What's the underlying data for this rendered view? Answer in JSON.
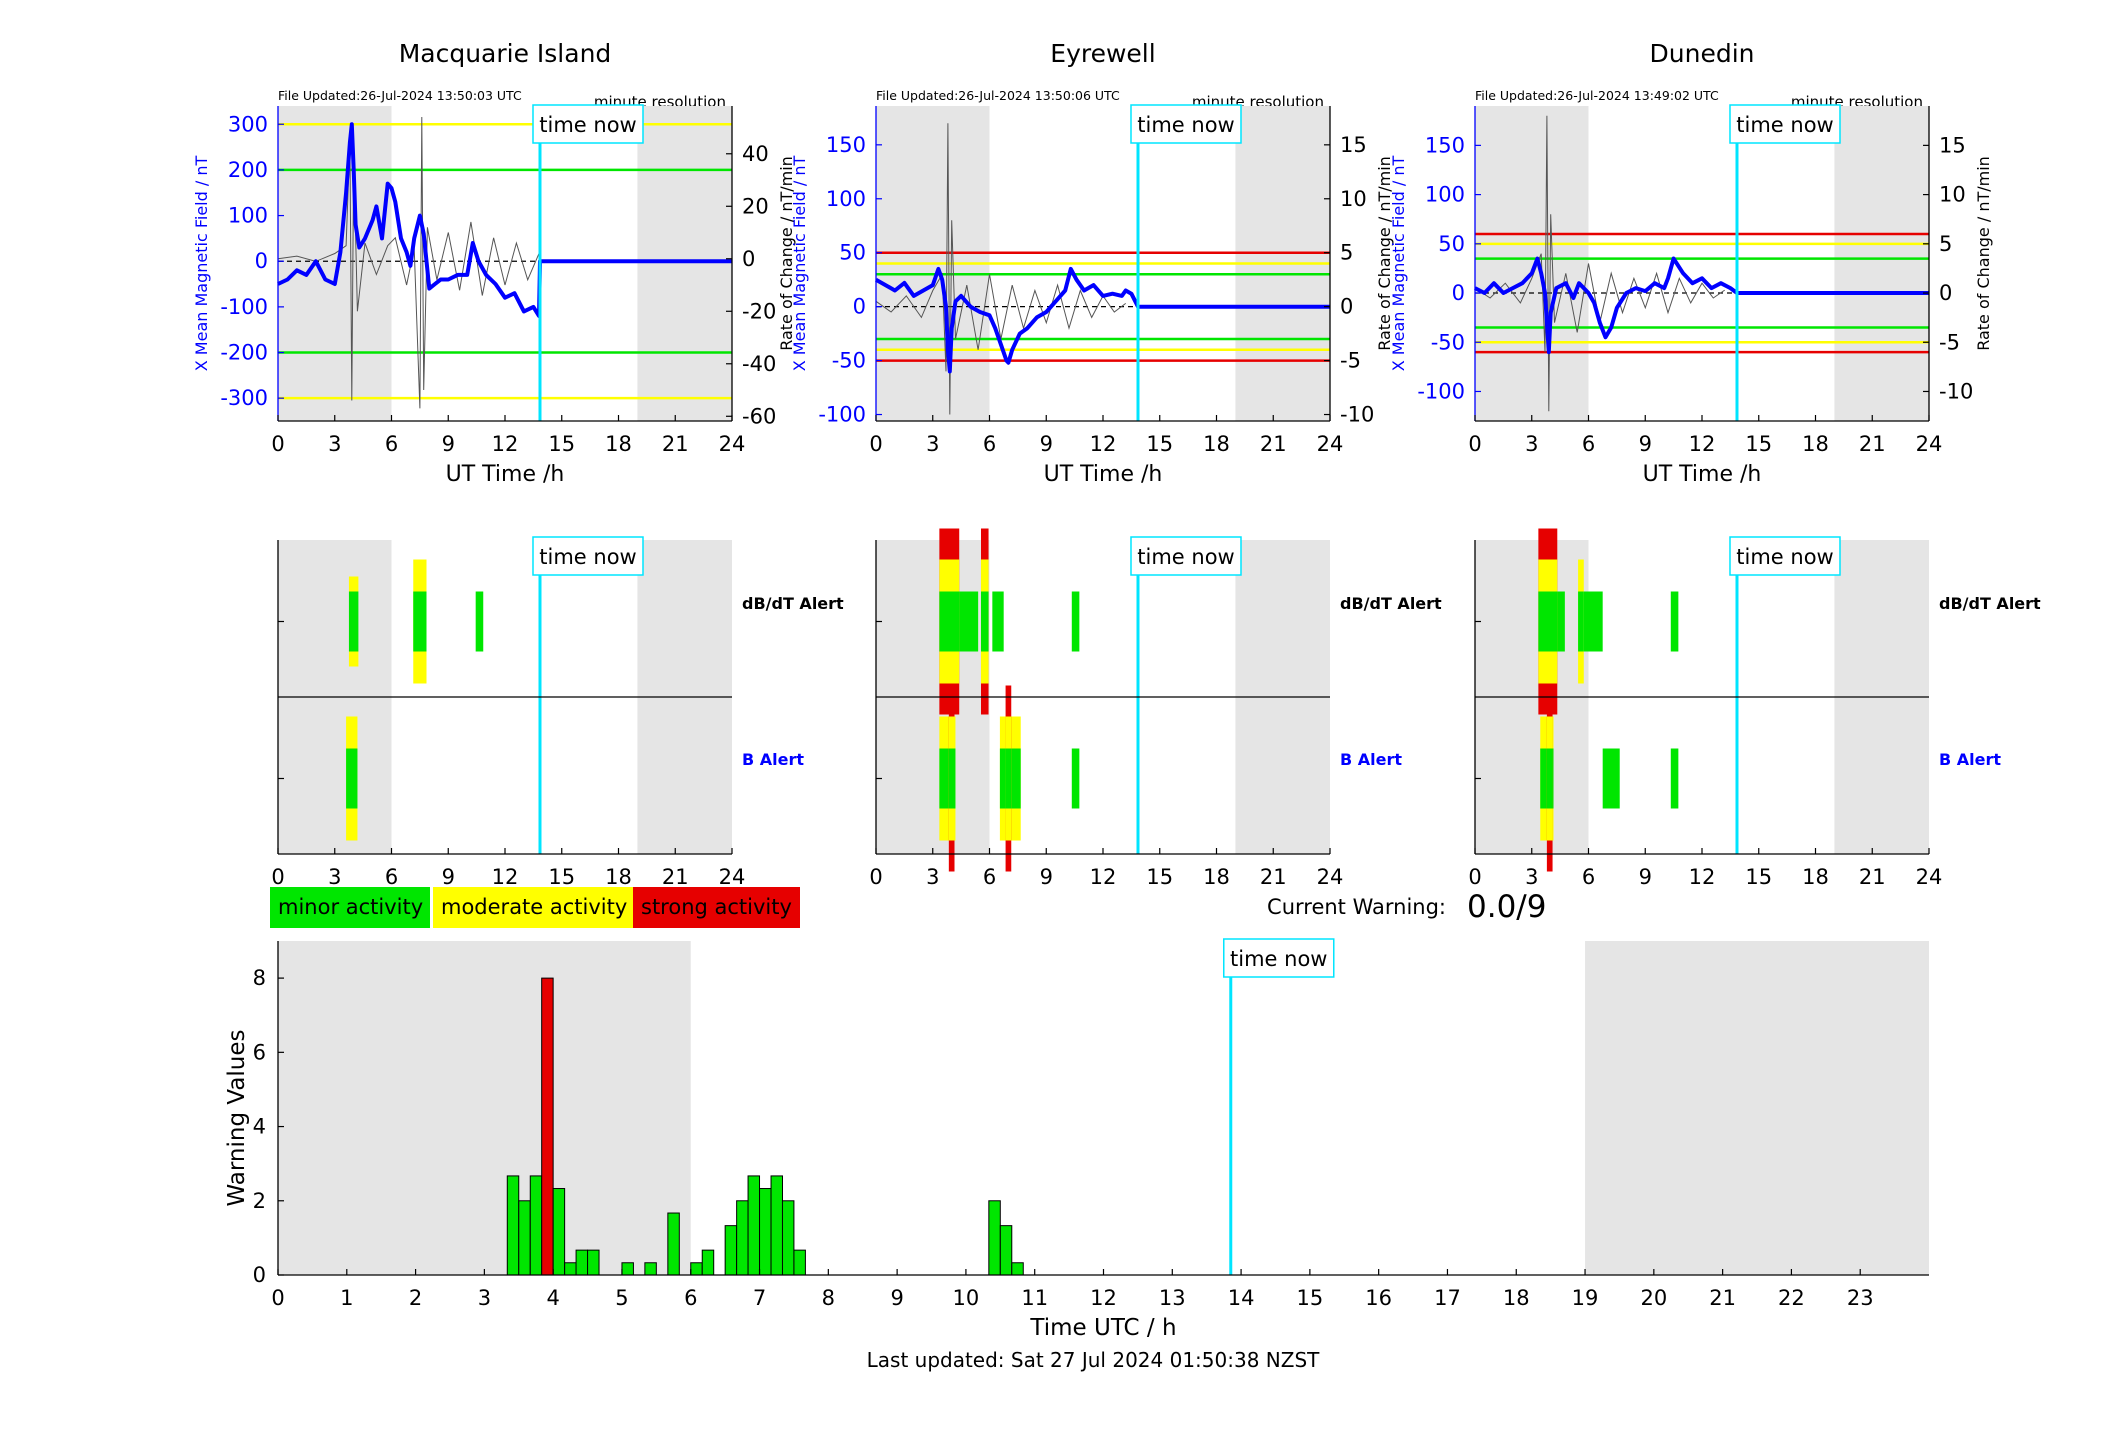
{
  "chart_data": [
    {
      "type": "line",
      "title": "Macquarie Island",
      "file_updated": "File Updated:26-Jul-2024 13:50:03 UTC",
      "resolution": "minute resolution",
      "xlabel": "UT Time /h",
      "ylabel": "X Mean Magnetic Field / nT",
      "y2label": "Rate of Change / nT/min",
      "xlim": [
        0,
        24
      ],
      "xticks": [
        0,
        3,
        6,
        9,
        12,
        15,
        18,
        21,
        24
      ],
      "ylim": [
        -350,
        340
      ],
      "yticks": [
        -300,
        -200,
        -100,
        0,
        100,
        200,
        300
      ],
      "y2lim": [
        -61.8,
        58.2
      ],
      "y2ticks": [
        -60,
        -40,
        -20,
        0,
        20,
        40
      ],
      "night_shading": [
        [
          0,
          6
        ],
        [
          19,
          24
        ]
      ],
      "time_now": 13.85,
      "time_now_label": "time now",
      "thresholds": [
        {
          "value": 200,
          "color": "#00e600"
        },
        {
          "value": -200,
          "color": "#00e600"
        },
        {
          "value": 300,
          "color": "#ffff00"
        },
        {
          "value": -300,
          "color": "#ffff00"
        }
      ],
      "series": [
        {
          "role": "field",
          "color": "#0000ff",
          "x": [
            0,
            0.5,
            1,
            1.5,
            2,
            2.5,
            3,
            3.3,
            3.6,
            3.8,
            3.9,
            4.0,
            4.1,
            4.3,
            4.6,
            5.0,
            5.2,
            5.5,
            5.8,
            6.0,
            6.2,
            6.5,
            6.8,
            7.0,
            7.2,
            7.5,
            7.7,
            8.0,
            8.3,
            8.6,
            9.0,
            9.5,
            10.0,
            10.3,
            10.6,
            11.0,
            11.5,
            12.0,
            12.5,
            13.0,
            13.5,
            13.8,
            13.85,
            24
          ],
          "y": [
            -50,
            -40,
            -20,
            -30,
            0,
            -40,
            -50,
            20,
            150,
            260,
            300,
            200,
            80,
            30,
            50,
            90,
            120,
            50,
            170,
            160,
            130,
            50,
            20,
            -10,
            50,
            100,
            60,
            -60,
            -50,
            -40,
            -40,
            -30,
            -30,
            40,
            0,
            -30,
            -50,
            -80,
            -70,
            -110,
            -100,
            -120,
            0,
            0
          ]
        },
        {
          "role": "rate",
          "color": "#555555",
          "x": [
            0,
            1,
            2,
            3,
            3.6,
            3.8,
            3.9,
            4.0,
            4.2,
            4.6,
            5.2,
            5.8,
            6.2,
            6.8,
            7.2,
            7.5,
            7.6,
            7.7,
            7.9,
            8.4,
            9.0,
            9.6,
            10.2,
            10.8,
            11.4,
            12.0,
            12.6,
            13.2,
            13.8
          ],
          "y": [
            0,
            1,
            -1,
            2,
            5,
            45,
            -54,
            40,
            -20,
            6,
            -6,
            5,
            8,
            -10,
            4,
            -57,
            54,
            -50,
            12,
            -8,
            10,
            -12,
            14,
            -14,
            8,
            -10,
            6,
            -8,
            2
          ]
        }
      ]
    },
    {
      "type": "line",
      "title": "Eyrewell",
      "file_updated": "File Updated:26-Jul-2024 13:50:06 UTC",
      "resolution": "minute resolution",
      "xlabel": "UT Time /h",
      "ylabel": "X Mean Magnetic Field / nT",
      "y2label": "Rate of Change / nT/min",
      "xlim": [
        0,
        24
      ],
      "xticks": [
        0,
        3,
        6,
        9,
        12,
        15,
        18,
        21,
        24
      ],
      "ylim": [
        -106,
        186
      ],
      "yticks": [
        -100,
        -50,
        0,
        50,
        100,
        150
      ],
      "y2lim": [
        -10.6,
        18.6
      ],
      "y2ticks": [
        -10,
        -5,
        0,
        5,
        10,
        15
      ],
      "night_shading": [
        [
          0,
          6
        ],
        [
          19,
          24
        ]
      ],
      "time_now": 13.85,
      "time_now_label": "time now",
      "thresholds": [
        {
          "value": 50,
          "color": "#e60000"
        },
        {
          "value": -50,
          "color": "#e60000"
        },
        {
          "value": 40,
          "color": "#ffff00"
        },
        {
          "value": -40,
          "color": "#ffff00"
        },
        {
          "value": 30,
          "color": "#00e600"
        },
        {
          "value": -30,
          "color": "#00e600"
        }
      ],
      "series": [
        {
          "role": "field",
          "color": "#0000ff",
          "x": [
            0,
            0.5,
            1,
            1.5,
            2,
            2.5,
            3,
            3.3,
            3.5,
            3.7,
            3.8,
            3.9,
            4.0,
            4.2,
            4.5,
            5.0,
            5.5,
            6.0,
            6.3,
            6.6,
            6.9,
            7.0,
            7.2,
            7.6,
            8.0,
            8.5,
            9.0,
            9.5,
            10.0,
            10.3,
            10.6,
            11.0,
            11.5,
            12.0,
            12.5,
            13.0,
            13.2,
            13.5,
            13.85,
            24
          ],
          "y": [
            25,
            20,
            15,
            22,
            10,
            15,
            20,
            35,
            25,
            0,
            -40,
            -60,
            -20,
            5,
            10,
            0,
            -5,
            -8,
            -20,
            -35,
            -50,
            -52,
            -40,
            -25,
            -20,
            -10,
            -5,
            5,
            15,
            35,
            25,
            15,
            20,
            10,
            12,
            10,
            15,
            12,
            0,
            0
          ]
        },
        {
          "role": "rate",
          "color": "#555555",
          "x": [
            0,
            0.8,
            1.6,
            2.4,
            3.0,
            3.5,
            3.7,
            3.8,
            3.9,
            4.0,
            4.2,
            4.8,
            5.4,
            6.0,
            6.6,
            7.2,
            7.8,
            8.4,
            9.0,
            9.6,
            10.2,
            10.8,
            11.4,
            12.0,
            12.6,
            13.2
          ],
          "y": [
            0.5,
            -0.5,
            1,
            -1,
            1.5,
            3,
            -6,
            17,
            -10,
            8,
            -3,
            2,
            -4,
            3,
            -3,
            2,
            -2,
            1.5,
            -1.5,
            2,
            -2,
            1.5,
            -1,
            1,
            -0.5,
            0.3
          ]
        }
      ]
    },
    {
      "type": "line",
      "title": "Dunedin",
      "file_updated": "File Updated:26-Jul-2024 13:49:02 UTC",
      "resolution": "minute resolution",
      "xlabel": "UT Time /h",
      "ylabel": "X Mean Magnetic Field / nT",
      "y2label": "Rate of Change / nT/min",
      "xlim": [
        0,
        24
      ],
      "xticks": [
        0,
        3,
        6,
        9,
        12,
        15,
        18,
        21,
        24
      ],
      "ylim": [
        -130,
        190
      ],
      "yticks": [
        -100,
        -50,
        0,
        50,
        100,
        150
      ],
      "y2lim": [
        -13,
        19
      ],
      "y2ticks": [
        -10,
        -5,
        0,
        5,
        10,
        15
      ],
      "night_shading": [
        [
          0,
          6
        ],
        [
          19,
          24
        ]
      ],
      "time_now": 13.85,
      "time_now_label": "time now",
      "thresholds": [
        {
          "value": 60,
          "color": "#e60000"
        },
        {
          "value": -60,
          "color": "#e60000"
        },
        {
          "value": 50,
          "color": "#ffff00"
        },
        {
          "value": -50,
          "color": "#ffff00"
        },
        {
          "value": 35,
          "color": "#00e600"
        },
        {
          "value": -35,
          "color": "#00e600"
        }
      ],
      "series": [
        {
          "role": "field",
          "color": "#0000ff",
          "x": [
            0,
            0.5,
            1,
            1.5,
            2,
            2.5,
            3,
            3.3,
            3.5,
            3.7,
            3.8,
            3.9,
            4.0,
            4.3,
            4.8,
            5.2,
            5.5,
            6.0,
            6.3,
            6.6,
            6.9,
            7.2,
            7.5,
            8.0,
            8.5,
            9.0,
            9.5,
            10.0,
            10.2,
            10.5,
            11.0,
            11.5,
            12.0,
            12.5,
            13.0,
            13.5,
            13.85,
            24
          ],
          "y": [
            5,
            0,
            10,
            0,
            5,
            10,
            20,
            35,
            20,
            0,
            -30,
            -60,
            -20,
            5,
            10,
            -5,
            10,
            0,
            -10,
            -30,
            -45,
            -35,
            -15,
            0,
            5,
            2,
            10,
            5,
            15,
            35,
            20,
            10,
            15,
            5,
            10,
            5,
            0,
            0
          ]
        },
        {
          "role": "rate",
          "color": "#555555",
          "x": [
            0,
            0.8,
            1.6,
            2.4,
            3.0,
            3.5,
            3.7,
            3.8,
            3.9,
            4.0,
            4.2,
            4.8,
            5.4,
            6.0,
            6.6,
            7.2,
            7.8,
            8.4,
            9.0,
            9.6,
            10.2,
            10.8,
            11.4,
            12.0,
            12.6,
            13.2
          ],
          "y": [
            0.5,
            -0.5,
            1,
            -1,
            1.5,
            4,
            -6,
            18,
            -12,
            8,
            -3,
            2,
            -4,
            3,
            -3,
            2,
            -2,
            1.5,
            -1.5,
            2,
            -2,
            1.5,
            -1,
            1,
            -0.5,
            0.3
          ]
        }
      ]
    }
  ],
  "alerts": [
    {
      "station": "Macquarie Island",
      "dbdt_label": "dB/dT Alert",
      "b_label": "B Alert",
      "time_now": 13.85,
      "time_now_label": "time now",
      "xticks": [
        0,
        3,
        6,
        9,
        12,
        15,
        18,
        21,
        24
      ],
      "night_shading": [
        [
          0,
          6
        ],
        [
          19,
          24
        ]
      ],
      "dbdt": [
        {
          "start": 3.75,
          "end": 4.25,
          "level": 1,
          "minor_to_moderate": true
        },
        {
          "start": 7.15,
          "end": 7.85,
          "level": 2
        },
        {
          "start": 10.45,
          "end": 10.85,
          "level": 1
        }
      ],
      "b": [
        {
          "start": 3.6,
          "end": 4.2,
          "level": 2
        }
      ]
    },
    {
      "station": "Eyrewell",
      "dbdt_label": "dB/dT Alert",
      "b_label": "B Alert",
      "time_now": 13.85,
      "time_now_label": "time now",
      "xticks": [
        0,
        3,
        6,
        9,
        12,
        15,
        18,
        21,
        24
      ],
      "night_shading": [
        [
          0,
          6
        ],
        [
          19,
          24
        ]
      ],
      "dbdt": [
        {
          "start": 3.35,
          "end": 4.4,
          "level": 3
        },
        {
          "start": 4.4,
          "end": 5.4,
          "level": 1
        },
        {
          "start": 5.55,
          "end": 5.95,
          "level": 3
        },
        {
          "start": 6.15,
          "end": 6.75,
          "level": 1
        },
        {
          "start": 10.35,
          "end": 10.75,
          "level": 1
        }
      ],
      "b": [
        {
          "start": 3.35,
          "end": 4.2,
          "level": 2
        },
        {
          "start": 3.85,
          "end": 4.15,
          "level": 3
        },
        {
          "start": 6.55,
          "end": 7.65,
          "level": 2
        },
        {
          "start": 6.85,
          "end": 7.15,
          "level": 3
        },
        {
          "start": 10.35,
          "end": 10.75,
          "level": 1
        }
      ]
    },
    {
      "station": "Dunedin",
      "dbdt_label": "dB/dT Alert",
      "b_label": "B Alert",
      "time_now": 13.85,
      "time_now_label": "time now",
      "xticks": [
        0,
        3,
        6,
        9,
        12,
        15,
        18,
        21,
        24
      ],
      "night_shading": [
        [
          0,
          6
        ],
        [
          19,
          24
        ]
      ],
      "dbdt": [
        {
          "start": 3.35,
          "end": 4.35,
          "level": 3
        },
        {
          "start": 4.35,
          "end": 4.75,
          "level": 1
        },
        {
          "start": 5.45,
          "end": 5.75,
          "level": 2
        },
        {
          "start": 5.75,
          "end": 6.75,
          "level": 1
        },
        {
          "start": 10.35,
          "end": 10.75,
          "level": 1
        }
      ],
      "b": [
        {
          "start": 3.45,
          "end": 4.15,
          "level": 2
        },
        {
          "start": 3.8,
          "end": 4.1,
          "level": 3
        },
        {
          "start": 6.75,
          "end": 7.65,
          "level": 1
        },
        {
          "start": 10.35,
          "end": 10.75,
          "level": 1
        }
      ]
    }
  ],
  "legend": {
    "minor": "minor activity",
    "moderate": "moderate activity",
    "strong": "strong activity",
    "colors": {
      "minor": "#00e600",
      "moderate": "#ffff00",
      "strong": "#e60000"
    }
  },
  "current_warning": {
    "label": "Current Warning:",
    "value": "0.0/9"
  },
  "warning_chart": {
    "type": "bar",
    "xlabel": "Time UTC / h",
    "ylabel": "Warning Values",
    "xlim": [
      0,
      24
    ],
    "xticks": [
      0,
      1,
      2,
      3,
      4,
      5,
      6,
      7,
      8,
      9,
      10,
      11,
      12,
      13,
      14,
      15,
      16,
      17,
      18,
      19,
      20,
      21,
      22,
      23
    ],
    "ylim": [
      0,
      9
    ],
    "yticks": [
      0,
      2,
      4,
      6,
      8
    ],
    "bar_width": 0.1667,
    "night_shading": [
      [
        0,
        6
      ],
      [
        19,
        24
      ]
    ],
    "time_now": 13.85,
    "time_now_label": "time now",
    "bars": [
      {
        "x": 3.333,
        "value": 2.67,
        "color": "#00e600"
      },
      {
        "x": 3.5,
        "value": 2.0,
        "color": "#00e600"
      },
      {
        "x": 3.667,
        "value": 2.67,
        "color": "#00e600"
      },
      {
        "x": 3.833,
        "value": 8.0,
        "color": "#e60000"
      },
      {
        "x": 4.0,
        "value": 2.33,
        "color": "#00e600"
      },
      {
        "x": 4.167,
        "value": 0.33,
        "color": "#00e600"
      },
      {
        "x": 4.333,
        "value": 0.67,
        "color": "#00e600"
      },
      {
        "x": 4.5,
        "value": 0.67,
        "color": "#00e600"
      },
      {
        "x": 5.0,
        "value": 0.33,
        "color": "#00e600"
      },
      {
        "x": 5.333,
        "value": 0.33,
        "color": "#00e600"
      },
      {
        "x": 5.667,
        "value": 1.67,
        "color": "#00e600"
      },
      {
        "x": 6.0,
        "value": 0.33,
        "color": "#00e600"
      },
      {
        "x": 6.167,
        "value": 0.67,
        "color": "#00e600"
      },
      {
        "x": 6.5,
        "value": 1.33,
        "color": "#00e600"
      },
      {
        "x": 6.667,
        "value": 2.0,
        "color": "#00e600"
      },
      {
        "x": 6.833,
        "value": 2.67,
        "color": "#00e600"
      },
      {
        "x": 7.0,
        "value": 2.33,
        "color": "#00e600"
      },
      {
        "x": 7.167,
        "value": 2.67,
        "color": "#00e600"
      },
      {
        "x": 7.333,
        "value": 2.0,
        "color": "#00e600"
      },
      {
        "x": 7.5,
        "value": 0.67,
        "color": "#00e600"
      },
      {
        "x": 10.333,
        "value": 2.0,
        "color": "#00e600"
      },
      {
        "x": 10.5,
        "value": 1.33,
        "color": "#00e600"
      },
      {
        "x": 10.667,
        "value": 0.33,
        "color": "#00e600"
      }
    ]
  },
  "last_updated": "Last updated: Sat 27 Jul 2024 01:50:38 NZST",
  "colors": {
    "field": "#0000ff",
    "rate": "#555555",
    "time_now": "#00e5ff",
    "night": "#e5e5e5",
    "axis_blue": "#0000ff"
  }
}
